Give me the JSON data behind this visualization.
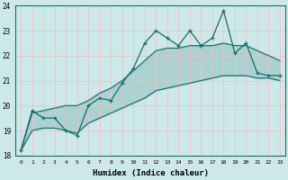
{
  "xlabel": "Humidex (Indice chaleur)",
  "background_color": "#cce8e8",
  "grid_color": "#f0c0c8",
  "line_color": "#1a6b6b",
  "x": [
    0,
    1,
    2,
    3,
    4,
    5,
    6,
    7,
    8,
    9,
    10,
    11,
    12,
    13,
    14,
    15,
    16,
    17,
    18,
    19,
    20,
    21,
    22,
    23
  ],
  "y_main": [
    18.2,
    19.8,
    19.5,
    19.5,
    19.0,
    18.8,
    20.0,
    20.3,
    20.2,
    20.9,
    21.5,
    22.5,
    23.0,
    22.7,
    22.4,
    23.0,
    22.4,
    22.7,
    23.8,
    22.1,
    22.5,
    21.3,
    21.2,
    21.2
  ],
  "y_low": [
    18.2,
    19.0,
    19.1,
    19.1,
    19.0,
    18.9,
    19.3,
    19.5,
    19.7,
    19.9,
    20.1,
    20.3,
    20.6,
    20.7,
    20.8,
    20.9,
    21.0,
    21.1,
    21.2,
    21.2,
    21.2,
    21.1,
    21.1,
    21.0
  ],
  "y_high": [
    18.2,
    19.7,
    19.8,
    19.9,
    20.0,
    20.0,
    20.2,
    20.5,
    20.7,
    21.0,
    21.4,
    21.8,
    22.2,
    22.3,
    22.3,
    22.4,
    22.4,
    22.4,
    22.5,
    22.4,
    22.4,
    22.2,
    22.0,
    21.8
  ],
  "ylim": [
    18,
    24
  ],
  "xlim": [
    -0.5,
    23.5
  ],
  "yticks": [
    18,
    19,
    20,
    21,
    22,
    23,
    24
  ],
  "xticks": [
    0,
    1,
    2,
    3,
    4,
    5,
    6,
    7,
    8,
    9,
    10,
    11,
    12,
    13,
    14,
    15,
    16,
    17,
    18,
    19,
    20,
    21,
    22,
    23
  ]
}
